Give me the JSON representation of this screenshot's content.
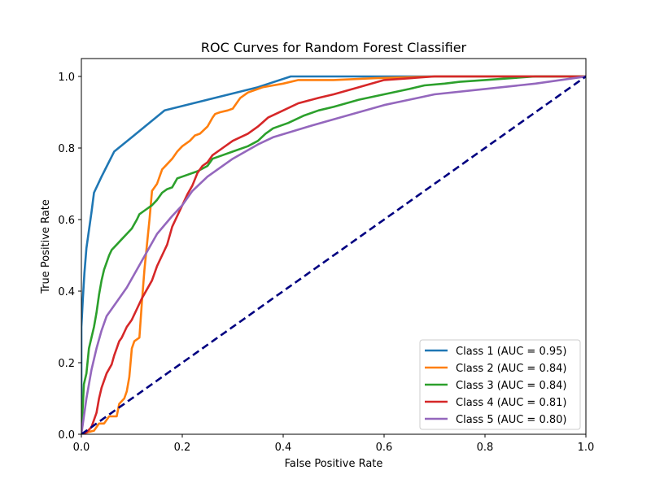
{
  "chart_data": {
    "type": "line",
    "title": "ROC Curves for Random Forest Classifier",
    "xlabel": "False Positive Rate",
    "ylabel": "True Positive Rate",
    "xlim": [
      0.0,
      1.0
    ],
    "ylim": [
      0.0,
      1.05
    ],
    "xticks": [
      0.0,
      0.2,
      0.4,
      0.6,
      0.8,
      1.0
    ],
    "yticks": [
      0.0,
      0.2,
      0.4,
      0.6,
      0.8,
      1.0
    ],
    "xtick_labels": [
      "0.0",
      "0.2",
      "0.4",
      "0.6",
      "0.8",
      "1.0"
    ],
    "ytick_labels": [
      "0.0",
      "0.2",
      "0.4",
      "0.6",
      "0.8",
      "1.0"
    ],
    "grid": false,
    "legend_position": "lower-right",
    "series": [
      {
        "name": "Class 1 (AUC = 0.95)",
        "color": "#1f77b4",
        "x": [
          0.0,
          0.0,
          0.003,
          0.006,
          0.01,
          0.02,
          0.025,
          0.04,
          0.065,
          0.1,
          0.165,
          0.25,
          0.35,
          0.415,
          0.5,
          0.6,
          0.7,
          0.8,
          0.9,
          1.0
        ],
        "y": [
          0.0,
          0.3,
          0.38,
          0.45,
          0.52,
          0.62,
          0.675,
          0.72,
          0.79,
          0.83,
          0.905,
          0.935,
          0.97,
          1.0,
          1.0,
          1.0,
          1.0,
          1.0,
          1.0,
          1.0
        ]
      },
      {
        "name": "Class 2 (AUC = 0.84)",
        "color": "#ff7f0e",
        "x": [
          0.0,
          0.01,
          0.025,
          0.035,
          0.045,
          0.055,
          0.07,
          0.075,
          0.085,
          0.09,
          0.095,
          0.1,
          0.105,
          0.115,
          0.12,
          0.125,
          0.13,
          0.135,
          0.14,
          0.15,
          0.16,
          0.17,
          0.18,
          0.19,
          0.2,
          0.215,
          0.225,
          0.235,
          0.25,
          0.26,
          0.265,
          0.275,
          0.29,
          0.3,
          0.315,
          0.33,
          0.35,
          0.36,
          0.38,
          0.4,
          0.43,
          0.5,
          0.58,
          0.7,
          0.8,
          0.9,
          1.0
        ],
        "y": [
          0.0,
          0.005,
          0.01,
          0.03,
          0.03,
          0.05,
          0.05,
          0.085,
          0.1,
          0.12,
          0.16,
          0.24,
          0.26,
          0.27,
          0.37,
          0.46,
          0.53,
          0.6,
          0.68,
          0.7,
          0.74,
          0.755,
          0.77,
          0.79,
          0.805,
          0.82,
          0.835,
          0.84,
          0.86,
          0.885,
          0.895,
          0.9,
          0.905,
          0.91,
          0.94,
          0.955,
          0.965,
          0.97,
          0.975,
          0.98,
          0.99,
          0.99,
          0.995,
          1.0,
          1.0,
          1.0,
          1.0
        ]
      },
      {
        "name": "Class 3 (AUC = 0.84)",
        "color": "#2ca02c",
        "x": [
          0.0,
          0.005,
          0.01,
          0.015,
          0.02,
          0.025,
          0.03,
          0.035,
          0.04,
          0.045,
          0.05,
          0.055,
          0.06,
          0.07,
          0.08,
          0.09,
          0.1,
          0.11,
          0.115,
          0.125,
          0.135,
          0.14,
          0.15,
          0.16,
          0.17,
          0.18,
          0.19,
          0.2,
          0.23,
          0.25,
          0.26,
          0.28,
          0.3,
          0.33,
          0.35,
          0.365,
          0.38,
          0.41,
          0.44,
          0.47,
          0.5,
          0.55,
          0.6,
          0.65,
          0.68,
          0.72,
          0.75,
          0.8,
          0.85,
          0.9,
          1.0
        ],
        "y": [
          0.0,
          0.14,
          0.17,
          0.24,
          0.27,
          0.3,
          0.34,
          0.39,
          0.43,
          0.46,
          0.48,
          0.5,
          0.515,
          0.53,
          0.545,
          0.56,
          0.575,
          0.6,
          0.615,
          0.625,
          0.635,
          0.64,
          0.655,
          0.675,
          0.685,
          0.69,
          0.715,
          0.72,
          0.735,
          0.75,
          0.77,
          0.78,
          0.79,
          0.805,
          0.82,
          0.84,
          0.855,
          0.87,
          0.89,
          0.905,
          0.915,
          0.935,
          0.95,
          0.965,
          0.975,
          0.98,
          0.985,
          0.99,
          0.995,
          1.0,
          1.0
        ]
      },
      {
        "name": "Class 4 (AUC = 0.81)",
        "color": "#d62728",
        "x": [
          0.0,
          0.01,
          0.02,
          0.03,
          0.035,
          0.04,
          0.05,
          0.06,
          0.065,
          0.07,
          0.075,
          0.08,
          0.09,
          0.1,
          0.11,
          0.12,
          0.13,
          0.14,
          0.15,
          0.16,
          0.17,
          0.18,
          0.19,
          0.2,
          0.21,
          0.22,
          0.23,
          0.24,
          0.25,
          0.26,
          0.28,
          0.3,
          0.33,
          0.35,
          0.37,
          0.4,
          0.43,
          0.47,
          0.5,
          0.55,
          0.6,
          0.7,
          0.8,
          1.0
        ],
        "y": [
          0.0,
          0.005,
          0.02,
          0.06,
          0.1,
          0.13,
          0.17,
          0.195,
          0.22,
          0.24,
          0.26,
          0.27,
          0.3,
          0.32,
          0.35,
          0.38,
          0.405,
          0.43,
          0.47,
          0.5,
          0.53,
          0.58,
          0.61,
          0.64,
          0.67,
          0.695,
          0.73,
          0.75,
          0.76,
          0.78,
          0.8,
          0.82,
          0.84,
          0.86,
          0.885,
          0.905,
          0.925,
          0.94,
          0.95,
          0.97,
          0.99,
          1.0,
          1.0,
          1.0
        ]
      },
      {
        "name": "Class 5 (AUC = 0.80)",
        "color": "#9467bd",
        "x": [
          0.0,
          0.005,
          0.01,
          0.02,
          0.03,
          0.04,
          0.05,
          0.07,
          0.09,
          0.11,
          0.13,
          0.15,
          0.18,
          0.2,
          0.22,
          0.25,
          0.3,
          0.35,
          0.38,
          0.45,
          0.5,
          0.6,
          0.65,
          0.7,
          0.8,
          0.9,
          1.0
        ],
        "y": [
          0.0,
          0.05,
          0.1,
          0.18,
          0.24,
          0.29,
          0.33,
          0.37,
          0.41,
          0.46,
          0.51,
          0.56,
          0.61,
          0.64,
          0.68,
          0.72,
          0.77,
          0.81,
          0.83,
          0.86,
          0.88,
          0.92,
          0.935,
          0.95,
          0.965,
          0.98,
          1.0
        ]
      }
    ],
    "reference_line": {
      "color": "#000080",
      "style": "dashed",
      "x": [
        0.0,
        1.0
      ],
      "y": [
        0.0,
        1.0
      ]
    }
  }
}
